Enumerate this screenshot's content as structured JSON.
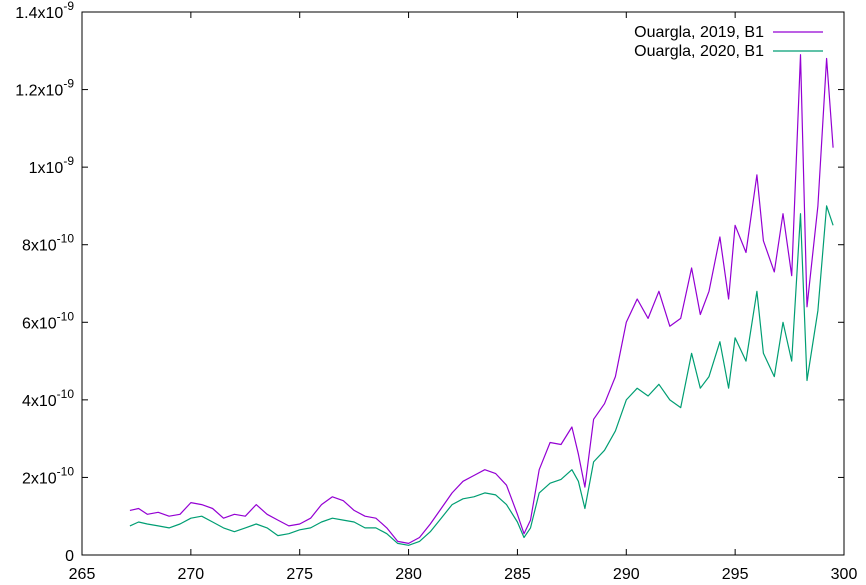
{
  "chart_data": {
    "type": "line",
    "title": "",
    "xlabel": "",
    "ylabel": "",
    "xlim": [
      265,
      300
    ],
    "ylim": [
      0,
      1.4e-09
    ],
    "grid": false,
    "legend_position": "top-right",
    "x_ticks": [
      {
        "value": 265,
        "label": "265"
      },
      {
        "value": 270,
        "label": "270"
      },
      {
        "value": 275,
        "label": "275"
      },
      {
        "value": 280,
        "label": "280"
      },
      {
        "value": 285,
        "label": "285"
      },
      {
        "value": 290,
        "label": "290"
      },
      {
        "value": 295,
        "label": "295"
      },
      {
        "value": 300,
        "label": "300"
      }
    ],
    "y_ticks": [
      {
        "value": 0,
        "mantissa": "0",
        "exp": ""
      },
      {
        "value": 2e-10,
        "mantissa": "2x10",
        "exp": "-10"
      },
      {
        "value": 4e-10,
        "mantissa": "4x10",
        "exp": "-10"
      },
      {
        "value": 6e-10,
        "mantissa": "6x10",
        "exp": "-10"
      },
      {
        "value": 8e-10,
        "mantissa": "8x10",
        "exp": "-10"
      },
      {
        "value": 1e-09,
        "mantissa": "1x10",
        "exp": "-9"
      },
      {
        "value": 1.2e-09,
        "mantissa": "1.2x10",
        "exp": "-9"
      },
      {
        "value": 1.4e-09,
        "mantissa": "1.4x10",
        "exp": "-9"
      }
    ],
    "series": [
      {
        "name": "Ouargla, 2019, B1",
        "color": "#9400d3",
        "x": [
          267.2,
          267.6,
          268.0,
          268.5,
          269.0,
          269.5,
          270.0,
          270.5,
          271.0,
          271.5,
          272.0,
          272.5,
          273.0,
          273.5,
          274.0,
          274.5,
          275.0,
          275.5,
          276.0,
          276.5,
          277.0,
          277.5,
          278.0,
          278.5,
          279.0,
          279.5,
          280.0,
          280.5,
          281.0,
          281.5,
          282.0,
          282.5,
          283.0,
          283.5,
          284.0,
          284.5,
          285.0,
          285.3,
          285.6,
          286.0,
          286.5,
          287.0,
          287.5,
          287.8,
          288.1,
          288.5,
          289.0,
          289.5,
          290.0,
          290.5,
          291.0,
          291.5,
          292.0,
          292.5,
          293.0,
          293.4,
          293.8,
          294.3,
          294.7,
          295.0,
          295.5,
          296.0,
          296.3,
          296.8,
          297.2,
          297.6,
          298.0,
          298.3,
          298.8,
          299.2,
          299.5
        ],
        "y": [
          1.15e-10,
          1.2e-10,
          1.05e-10,
          1.1e-10,
          1e-10,
          1.05e-10,
          1.35e-10,
          1.3e-10,
          1.2e-10,
          9.5e-11,
          1.05e-10,
          1e-10,
          1.3e-10,
          1.05e-10,
          9e-11,
          7.5e-11,
          8e-11,
          9.5e-11,
          1.3e-10,
          1.5e-10,
          1.4e-10,
          1.15e-10,
          1e-10,
          9.5e-11,
          7e-11,
          3.5e-11,
          3e-11,
          4.5e-11,
          8e-11,
          1.2e-10,
          1.6e-10,
          1.9e-10,
          2.05e-10,
          2.2e-10,
          2.1e-10,
          1.8e-10,
          1.05e-10,
          5.5e-11,
          9e-11,
          2.2e-10,
          2.9e-10,
          2.85e-10,
          3.3e-10,
          2.6e-10,
          1.75e-10,
          3.5e-10,
          3.9e-10,
          4.6e-10,
          6e-10,
          6.6e-10,
          6.1e-10,
          6.8e-10,
          5.9e-10,
          6.1e-10,
          7.4e-10,
          6.2e-10,
          6.8e-10,
          8.2e-10,
          6.6e-10,
          8.5e-10,
          7.8e-10,
          9.8e-10,
          8.1e-10,
          7.3e-10,
          8.8e-10,
          7.2e-10,
          1.29e-09,
          6.4e-10,
          9e-10,
          1.28e-09,
          1.05e-09
        ]
      },
      {
        "name": "Ouargla, 2020, B1",
        "color": "#009e73",
        "x": [
          267.2,
          267.6,
          268.0,
          268.5,
          269.0,
          269.5,
          270.0,
          270.5,
          271.0,
          271.5,
          272.0,
          272.5,
          273.0,
          273.5,
          274.0,
          274.5,
          275.0,
          275.5,
          276.0,
          276.5,
          277.0,
          277.5,
          278.0,
          278.5,
          279.0,
          279.5,
          280.0,
          280.5,
          281.0,
          281.5,
          282.0,
          282.5,
          283.0,
          283.5,
          284.0,
          284.5,
          285.0,
          285.3,
          285.6,
          286.0,
          286.5,
          287.0,
          287.5,
          287.8,
          288.1,
          288.5,
          289.0,
          289.5,
          290.0,
          290.5,
          291.0,
          291.5,
          292.0,
          292.5,
          293.0,
          293.4,
          293.8,
          294.3,
          294.7,
          295.0,
          295.5,
          296.0,
          296.3,
          296.8,
          297.2,
          297.6,
          298.0,
          298.3,
          298.8,
          299.2,
          299.5
        ],
        "y": [
          7.5e-11,
          8.5e-11,
          8e-11,
          7.5e-11,
          7e-11,
          8e-11,
          9.5e-11,
          1e-10,
          8.5e-11,
          7e-11,
          6e-11,
          7e-11,
          8e-11,
          7e-11,
          5e-11,
          5.5e-11,
          6.5e-11,
          7e-11,
          8.5e-11,
          9.5e-11,
          9e-11,
          8.5e-11,
          7e-11,
          7e-11,
          5.5e-11,
          3e-11,
          2.5e-11,
          3.5e-11,
          6e-11,
          9.5e-11,
          1.3e-10,
          1.45e-10,
          1.5e-10,
          1.6e-10,
          1.55e-10,
          1.3e-10,
          8.5e-11,
          4.5e-11,
          7e-11,
          1.6e-10,
          1.85e-10,
          1.95e-10,
          2.2e-10,
          1.9e-10,
          1.2e-10,
          2.4e-10,
          2.7e-10,
          3.2e-10,
          4e-10,
          4.3e-10,
          4.1e-10,
          4.4e-10,
          4e-10,
          3.8e-10,
          5.2e-10,
          4.3e-10,
          4.6e-10,
          5.5e-10,
          4.3e-10,
          5.6e-10,
          5e-10,
          6.8e-10,
          5.2e-10,
          4.6e-10,
          6e-10,
          5e-10,
          8.8e-10,
          4.5e-10,
          6.3e-10,
          9e-10,
          8.5e-10
        ]
      }
    ]
  }
}
